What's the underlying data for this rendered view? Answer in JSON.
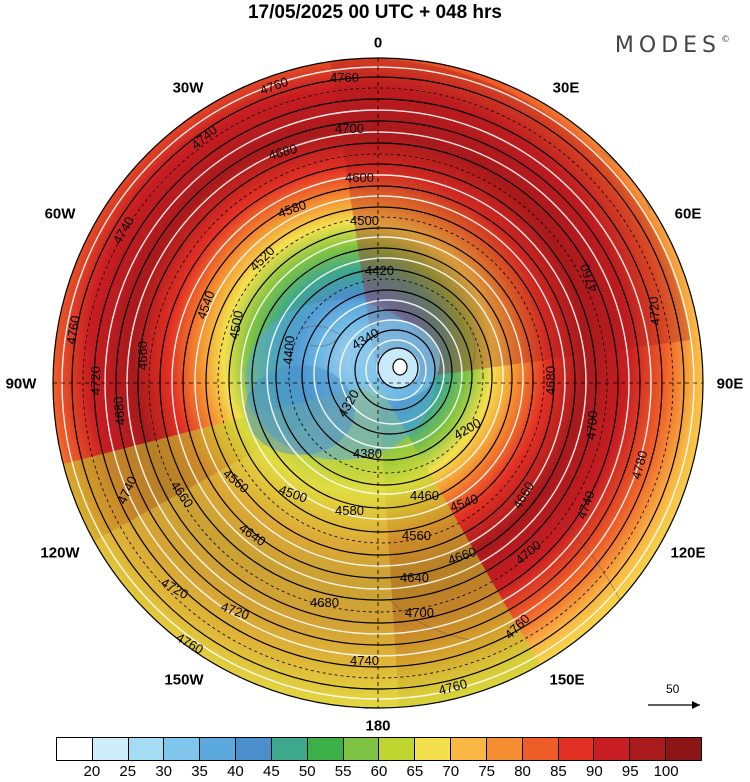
{
  "title": "17/05/2025  00 UTC  + 048 hrs",
  "brand": "MODES",
  "brand_mark": "©",
  "longitude_labels": {
    "n": "0",
    "ne30": "30E",
    "ne60": "60E",
    "e": "90E",
    "se120": "120E",
    "se150": "150E",
    "s": "180",
    "sw150": "150W",
    "sw120": "120W",
    "w": "90W",
    "nw60": "60W",
    "nw30": "30W"
  },
  "vector_scale_label": "50",
  "contour_labels": {
    "l4760a": "4760",
    "l4760b": "4760",
    "l4740a": "4740",
    "l4740b": "4740",
    "l4700a": "4700",
    "l4680a": "4680",
    "l4660a": "4660",
    "l4600a": "4600",
    "l4580a": "4580",
    "l4540a": "4540",
    "l4520a": "4520",
    "l4500a": "4500",
    "l4500b": "4500",
    "l4420a": "4420",
    "l4400a": "4400",
    "l4380a": "4380",
    "l4340a": "4340",
    "l4320a": "4320",
    "l4200a": "4200",
    "l4460a": "4460",
    "l4560a": "4560",
    "l4580b": "4580",
    "l4640a": "4640",
    "l4640b": "4640",
    "l4600b": "4600",
    "l4680b": "4680",
    "l4700b": "4700",
    "l4720a": "4720",
    "l4720b": "4720",
    "l4740c": "4740",
    "l4760c": "4760",
    "l4780a": "4780",
    "l4720c": "4720",
    "l4660b": "4660",
    "l4680c": "4680",
    "l4700c": "4700",
    "l4720d": "4720",
    "l4740d": "4740",
    "l4760d": "4760"
  },
  "colorbar": {
    "colors": [
      "#ffffff",
      "#cfeefc",
      "#a5dcf5",
      "#80c6ec",
      "#5aa8dc",
      "#4a8fcb",
      "#3ea88c",
      "#3cb14a",
      "#7dc242",
      "#bfd630",
      "#f4e04d",
      "#f9b844",
      "#f48c30",
      "#ee5c28",
      "#e33024",
      "#c81d22",
      "#a81a1c",
      "#8c1515"
    ],
    "ticks": [
      "20",
      "25",
      "30",
      "35",
      "40",
      "45",
      "50",
      "55",
      "60",
      "65",
      "70",
      "75",
      "80",
      "85",
      "90",
      "95",
      "100"
    ]
  }
}
